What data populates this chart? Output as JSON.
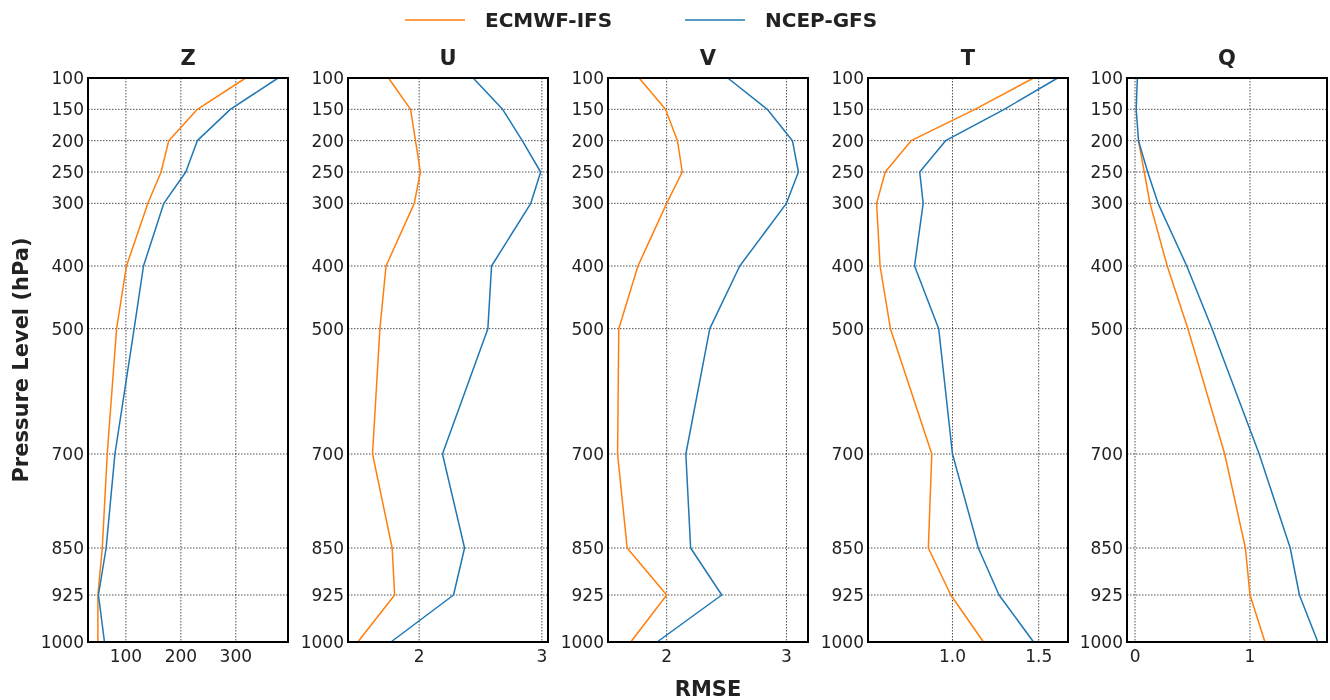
{
  "chart_data": [
    {
      "type": "line",
      "title": "Z",
      "ylabel": "Pressure Level (hPa)",
      "legend": "top",
      "grid": true,
      "xlim": [
        31,
        395
      ],
      "xticks": [
        100,
        200,
        300
      ],
      "ylim": [
        1000,
        100
      ],
      "yticks": [
        100,
        150,
        200,
        250,
        300,
        400,
        500,
        700,
        850,
        925,
        1000
      ],
      "series": [
        {
          "name": "ECMWF-IFS",
          "color": "#ff7f0e",
          "x": [
            318,
            230,
            178,
            164,
            140,
            101,
            83,
            66,
            57,
            49,
            49
          ],
          "values": [
            100,
            150,
            200,
            250,
            300,
            400,
            500,
            700,
            850,
            925,
            1000
          ]
        },
        {
          "name": "NCEP-GFS",
          "color": "#1f77b4",
          "x": [
            377,
            290,
            230,
            209,
            169,
            132,
            115,
            80,
            64,
            50,
            61
          ],
          "values": [
            100,
            150,
            200,
            250,
            300,
            400,
            500,
            700,
            850,
            925,
            1000
          ]
        }
      ]
    },
    {
      "type": "line",
      "title": "U",
      "grid": true,
      "xlim": [
        1.42,
        3.05
      ],
      "xticks": [
        2,
        3
      ],
      "ylim": [
        1000,
        100
      ],
      "yticks": [
        100,
        150,
        200,
        250,
        300,
        400,
        500,
        700,
        850,
        925,
        1000
      ],
      "series": [
        {
          "color": "#ff7f0e",
          "x": [
            1.75,
            1.93,
            1.97,
            2.01,
            1.96,
            1.73,
            1.68,
            1.62,
            1.78,
            1.8,
            1.5
          ],
          "values": [
            100,
            150,
            200,
            250,
            300,
            400,
            500,
            700,
            850,
            925,
            1000
          ]
        },
        {
          "color": "#1f77b4",
          "x": [
            2.44,
            2.68,
            2.84,
            2.99,
            2.91,
            2.59,
            2.56,
            2.19,
            2.37,
            2.28,
            1.77
          ],
          "values": [
            100,
            150,
            200,
            250,
            300,
            400,
            500,
            700,
            850,
            925,
            1000
          ]
        }
      ]
    },
    {
      "type": "line",
      "title": "V",
      "xlabel": "RMSE",
      "grid": true,
      "xlim": [
        1.51,
        3.18
      ],
      "xticks": [
        2,
        3
      ],
      "ylim": [
        1000,
        100
      ],
      "yticks": [
        100,
        150,
        200,
        250,
        300,
        400,
        500,
        700,
        850,
        925,
        1000
      ],
      "series": [
        {
          "color": "#ff7f0e",
          "x": [
            1.77,
            1.99,
            2.09,
            2.13,
            2.0,
            1.76,
            1.6,
            1.59,
            1.67,
            2.0,
            1.7
          ],
          "values": [
            100,
            150,
            200,
            250,
            300,
            400,
            500,
            700,
            850,
            925,
            1000
          ]
        },
        {
          "color": "#1f77b4",
          "x": [
            2.51,
            2.84,
            3.05,
            3.1,
            3.0,
            2.61,
            2.36,
            2.16,
            2.2,
            2.46,
            1.92
          ],
          "values": [
            100,
            150,
            200,
            250,
            300,
            400,
            500,
            700,
            850,
            925,
            1000
          ]
        }
      ]
    },
    {
      "type": "line",
      "title": "T",
      "grid": true,
      "xlim": [
        0.51,
        1.67
      ],
      "xticks": [
        {
          "value": 1,
          "label": "1.0"
        },
        {
          "value": 1.5,
          "label": "1.5"
        }
      ],
      "ylim": [
        1000,
        100
      ],
      "yticks": [
        100,
        150,
        200,
        250,
        300,
        400,
        500,
        700,
        850,
        925,
        1000
      ],
      "series": [
        {
          "color": "#ff7f0e",
          "x": [
            1.47,
            1.13,
            0.76,
            0.61,
            0.56,
            0.58,
            0.64,
            0.88,
            0.86,
            0.99,
            1.18
          ],
          "values": [
            100,
            150,
            200,
            250,
            300,
            400,
            500,
            700,
            850,
            925,
            1000
          ]
        },
        {
          "color": "#1f77b4",
          "x": [
            1.61,
            1.3,
            0.96,
            0.81,
            0.83,
            0.78,
            0.92,
            1.0,
            1.15,
            1.27,
            1.47
          ],
          "values": [
            100,
            150,
            200,
            250,
            300,
            400,
            500,
            700,
            850,
            925,
            1000
          ]
        }
      ]
    },
    {
      "type": "line",
      "title": "Q",
      "grid": true,
      "xlim": [
        -0.07,
        1.67
      ],
      "xticks": [
        0,
        1
      ],
      "ylim": [
        1000,
        100
      ],
      "yticks": [
        100,
        150,
        200,
        250,
        300,
        400,
        500,
        700,
        850,
        925,
        1000
      ],
      "series": [
        {
          "color": "#ff7f0e",
          "x": [
            null,
            null,
            0.03,
            0.08,
            0.13,
            0.28,
            0.46,
            0.78,
            0.96,
            1.0,
            1.13
          ],
          "values": [
            null,
            null,
            200,
            250,
            300,
            400,
            500,
            700,
            850,
            925,
            1000
          ]
        },
        {
          "color": "#1f77b4",
          "x": [
            0.02,
            0.01,
            0.03,
            0.11,
            0.2,
            0.45,
            0.67,
            1.08,
            1.35,
            1.43,
            1.59
          ],
          "values": [
            100,
            150,
            200,
            250,
            300,
            400,
            500,
            700,
            850,
            925,
            1000
          ]
        }
      ]
    }
  ]
}
